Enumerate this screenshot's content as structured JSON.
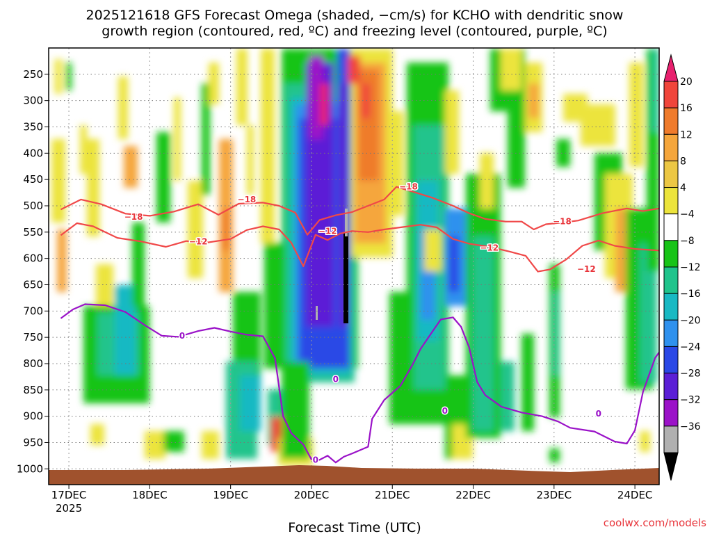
{
  "chart_data": {
    "type": "heatmap",
    "title_lines": [
      "2025121618 GFS Forecast Omega (shaded, −cm/s) for KCHO with dendritic snow",
      "growth region (contoured, red, ºC) and freezing level (contoured, purple, ºC)"
    ],
    "xlabel": "Forecast Time (UTC)",
    "x_ticks": [
      "17DEC",
      "18DEC",
      "19DEC",
      "20DEC",
      "21DEC",
      "22DEC",
      "23DEC",
      "24DEC"
    ],
    "x_tick_sub": "2025",
    "y_ticks": [
      250,
      300,
      350,
      400,
      450,
      500,
      550,
      600,
      650,
      700,
      750,
      800,
      850,
      900,
      950,
      1000
    ],
    "y_range": [
      200,
      1030
    ],
    "grid": true,
    "colorbar": {
      "labels": [
        "20",
        "16",
        "12",
        "8",
        "4",
        "−4",
        "−8",
        "−12",
        "−16",
        "−20",
        "−24",
        "−28",
        "−32",
        "−36"
      ],
      "colors": [
        "#e8206e",
        "#f0453b",
        "#ef7b2c",
        "#f5a63c",
        "#ecc744",
        "#ece43c",
        "#ffffff",
        "#18c418",
        "#20c48c",
        "#19b9c3",
        "#2f91ee",
        "#2a48e6",
        "#5b1fd6",
        "#9b12c8",
        "#b0b0b0",
        "#000000"
      ]
    },
    "isotherms": [
      {
        "label": "−18",
        "color": "#f04848",
        "points": [
          [
            16.9,
            507
          ],
          [
            17.15,
            488
          ],
          [
            17.4,
            497
          ],
          [
            17.7,
            515
          ],
          [
            18.0,
            519
          ],
          [
            18.3,
            511
          ],
          [
            18.6,
            497
          ],
          [
            18.85,
            517
          ],
          [
            19.1,
            496
          ],
          [
            19.4,
            494
          ],
          [
            19.6,
            500
          ],
          [
            19.8,
            513
          ],
          [
            19.95,
            555
          ],
          [
            20.1,
            527
          ],
          [
            20.3,
            518
          ],
          [
            20.5,
            512
          ],
          [
            20.7,
            500
          ],
          [
            20.9,
            488
          ],
          [
            21.05,
            464
          ],
          [
            21.25,
            473
          ],
          [
            21.5,
            485
          ],
          [
            21.75,
            500
          ],
          [
            21.95,
            514
          ],
          [
            22.15,
            525
          ],
          [
            22.4,
            530
          ],
          [
            22.6,
            530
          ],
          [
            22.75,
            545
          ],
          [
            22.9,
            535
          ],
          [
            23.1,
            532
          ],
          [
            23.3,
            528
          ],
          [
            23.6,
            514
          ],
          [
            23.9,
            505
          ],
          [
            24.1,
            510
          ],
          [
            24.3,
            505
          ]
        ]
      },
      {
        "label": "−12",
        "color": "#f04848",
        "points": [
          [
            16.9,
            556
          ],
          [
            17.1,
            533
          ],
          [
            17.3,
            539
          ],
          [
            17.6,
            561
          ],
          [
            17.9,
            568
          ],
          [
            18.2,
            578
          ],
          [
            18.45,
            567
          ],
          [
            18.7,
            570
          ],
          [
            19.0,
            563
          ],
          [
            19.2,
            546
          ],
          [
            19.4,
            539
          ],
          [
            19.6,
            545
          ],
          [
            19.75,
            570
          ],
          [
            19.9,
            615
          ],
          [
            20.05,
            555
          ],
          [
            20.2,
            565
          ],
          [
            20.35,
            553
          ],
          [
            20.5,
            548
          ],
          [
            20.7,
            550
          ],
          [
            20.9,
            545
          ],
          [
            21.1,
            541
          ],
          [
            21.35,
            536
          ],
          [
            21.55,
            541
          ],
          [
            21.75,
            563
          ],
          [
            21.95,
            572
          ],
          [
            22.2,
            578
          ],
          [
            22.45,
            587
          ],
          [
            22.65,
            595
          ],
          [
            22.8,
            625
          ],
          [
            22.95,
            621
          ],
          [
            23.15,
            602
          ],
          [
            23.35,
            576
          ],
          [
            23.55,
            566
          ],
          [
            23.75,
            576
          ],
          [
            24.0,
            582
          ],
          [
            24.3,
            585
          ]
        ]
      },
      {
        "label": "0",
        "color": "#9a12c8",
        "points": [
          [
            16.9,
            714
          ],
          [
            17.05,
            697
          ],
          [
            17.2,
            687
          ],
          [
            17.45,
            689
          ],
          [
            17.7,
            702
          ],
          [
            17.95,
            728
          ],
          [
            18.15,
            747
          ],
          [
            18.35,
            749
          ],
          [
            18.6,
            738
          ],
          [
            18.8,
            732
          ],
          [
            19.0,
            739
          ],
          [
            19.2,
            745
          ],
          [
            19.4,
            748
          ],
          [
            19.55,
            790
          ],
          [
            19.65,
            900
          ],
          [
            19.75,
            932
          ],
          [
            19.9,
            954
          ],
          [
            20.0,
            982
          ],
          [
            20.1,
            983
          ],
          [
            20.2,
            975
          ],
          [
            20.3,
            988
          ],
          [
            20.4,
            977
          ],
          [
            20.5,
            971
          ],
          [
            20.7,
            958
          ],
          [
            20.75,
            905
          ],
          [
            20.9,
            869
          ],
          [
            21.1,
            842
          ],
          [
            21.25,
            802
          ],
          [
            21.35,
            772
          ],
          [
            21.5,
            738
          ],
          [
            21.6,
            716
          ],
          [
            21.75,
            712
          ],
          [
            21.85,
            730
          ],
          [
            21.95,
            769
          ],
          [
            22.05,
            835
          ],
          [
            22.15,
            860
          ],
          [
            22.35,
            882
          ],
          [
            22.6,
            893
          ],
          [
            22.85,
            900
          ],
          [
            23.05,
            910
          ],
          [
            23.2,
            922
          ],
          [
            23.5,
            929
          ],
          [
            23.75,
            948
          ],
          [
            23.9,
            952
          ],
          [
            24.0,
            927
          ],
          [
            24.1,
            854
          ],
          [
            24.25,
            789
          ],
          [
            24.35,
            768
          ]
        ]
      }
    ],
    "contour_labels": [
      {
        "text": "−18",
        "x": 17.8,
        "y": 521
      },
      {
        "text": "−18",
        "x": 19.2,
        "y": 488
      },
      {
        "text": "−18",
        "x": 21.2,
        "y": 464
      },
      {
        "text": "−18",
        "x": 23.1,
        "y": 530
      },
      {
        "text": "−12",
        "x": 18.6,
        "y": 568
      },
      {
        "text": "−12",
        "x": 20.2,
        "y": 548
      },
      {
        "text": "−12",
        "x": 22.2,
        "y": 580
      },
      {
        "text": "−12",
        "x": 23.4,
        "y": 620
      },
      {
        "text": "0",
        "x": 18.4,
        "y": 747
      },
      {
        "text": "0",
        "x": 20.3,
        "y": 830
      },
      {
        "text": "0",
        "x": 20.05,
        "y": 983
      },
      {
        "text": "0",
        "x": 21.65,
        "y": 890
      },
      {
        "text": "0",
        "x": 23.55,
        "y": 895
      }
    ]
  },
  "credit": "coolwx.com/models"
}
